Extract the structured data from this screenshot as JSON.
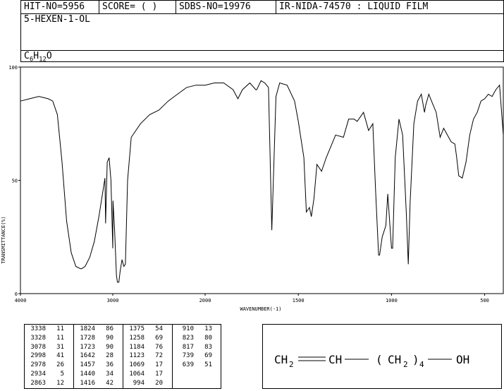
{
  "header": {
    "hit_no": "HIT-NO=5956",
    "score": "SCORE=  (  )",
    "sdbs_no": "SDBS-NO=19976",
    "ir_info": "IR-NIDA-74570 : LIQUID FILM",
    "compound_name": "5-HEXEN-1-OL",
    "formula": {
      "c": "C",
      "c_count": "6",
      "h": "H",
      "h_count": "12",
      "o": "O"
    }
  },
  "chart_data": {
    "type": "line",
    "title": "",
    "xlabel": "WAVENUMBER(-1)",
    "ylabel": "TRANSMITTANCE(%)",
    "xlim": [
      4000,
      400
    ],
    "ylim": [
      0,
      100
    ],
    "x_ticks": [
      "4000",
      "3000",
      "2000",
      "1500",
      "1000",
      "500"
    ],
    "x_tick_values": [
      4000,
      3000,
      2000,
      1500,
      1000,
      500
    ],
    "y_ticks": [
      "0",
      "50",
      "100"
    ],
    "y_tick_values": [
      0,
      50,
      100
    ],
    "series": [
      {
        "x": [
          4000,
          3900,
          3800,
          3700,
          3650,
          3600,
          3550,
          3500,
          3450,
          3400,
          3350,
          3338,
          3300,
          3250,
          3200,
          3150,
          3100,
          3085,
          3078,
          3060,
          3040,
          3020,
          3000,
          2998,
          2980,
          2960,
          2950,
          2934,
          2920,
          2900,
          2880,
          2863,
          2840,
          2800,
          2700,
          2600,
          2500,
          2400,
          2300,
          2200,
          2100,
          2000,
          1950,
          1900,
          1850,
          1824,
          1800,
          1760,
          1728,
          1723,
          1700,
          1680,
          1660,
          1642,
          1620,
          1600,
          1560,
          1520,
          1500,
          1470,
          1457,
          1440,
          1430,
          1416,
          1400,
          1375,
          1350,
          1300,
          1258,
          1230,
          1200,
          1184,
          1150,
          1123,
          1100,
          1085,
          1069,
          1064,
          1050,
          1030,
          1020,
          1000,
          994,
          980,
          960,
          940,
          920,
          910,
          900,
          880,
          860,
          840,
          823,
          817,
          800,
          780,
          760,
          739,
          720,
          700,
          680,
          660,
          650,
          639,
          620,
          600,
          580,
          560,
          540,
          520,
          500,
          480,
          460,
          440,
          420,
          400
        ],
        "y": [
          85,
          86,
          87,
          86,
          85,
          79,
          58,
          32,
          18,
          12,
          11,
          11,
          12,
          16,
          23,
          34,
          47,
          51,
          31,
          58,
          60,
          50,
          20,
          41,
          28,
          8,
          5,
          5,
          10,
          15,
          12,
          13,
          50,
          69,
          75,
          79,
          81,
          85,
          88,
          91,
          92,
          92,
          93,
          93,
          90,
          86,
          90,
          93,
          90,
          90,
          94,
          93,
          91,
          28,
          87,
          93,
          92,
          85,
          76,
          60,
          36,
          38,
          34,
          42,
          57,
          54,
          60,
          70,
          69,
          77,
          77,
          76,
          80,
          72,
          75,
          45,
          17,
          17,
          25,
          30,
          44,
          20,
          20,
          60,
          77,
          70,
          35,
          13,
          40,
          75,
          85,
          88,
          80,
          83,
          88,
          84,
          80,
          69,
          73,
          70,
          67,
          66,
          60,
          52,
          51,
          58,
          70,
          77,
          80,
          85,
          86,
          88,
          87,
          90,
          92,
          70
        ]
      }
    ]
  },
  "peak_table": {
    "columns": [
      [
        [
          "3338",
          "11"
        ],
        [
          "3328",
          "11"
        ],
        [
          "3078",
          "31"
        ],
        [
          "2998",
          "41"
        ],
        [
          "2978",
          "26"
        ],
        [
          "2934",
          "5"
        ],
        [
          "2863",
          "12"
        ]
      ],
      [
        [
          "1824",
          "86"
        ],
        [
          "1728",
          "90"
        ],
        [
          "1723",
          "90"
        ],
        [
          "1642",
          "28"
        ],
        [
          "1457",
          "36"
        ],
        [
          "1440",
          "34"
        ],
        [
          "1416",
          "42"
        ]
      ],
      [
        [
          "1375",
          "54"
        ],
        [
          "1258",
          "69"
        ],
        [
          "1184",
          "76"
        ],
        [
          "1123",
          "72"
        ],
        [
          "1069",
          "17"
        ],
        [
          "1064",
          "17"
        ],
        [
          "994",
          "20"
        ]
      ],
      [
        [
          "910",
          "13"
        ],
        [
          "823",
          "80"
        ],
        [
          "817",
          "83"
        ],
        [
          "739",
          "69"
        ],
        [
          "639",
          "51"
        ]
      ]
    ]
  },
  "structure": {
    "ch2_first": "CH",
    "sub_2a": "2",
    "ch": "CH",
    "paren_open": "(",
    "ch2_mid": "CH",
    "sub_2b": "2",
    "paren_close": ")",
    "sub_4": "4",
    "oh": "OH"
  }
}
